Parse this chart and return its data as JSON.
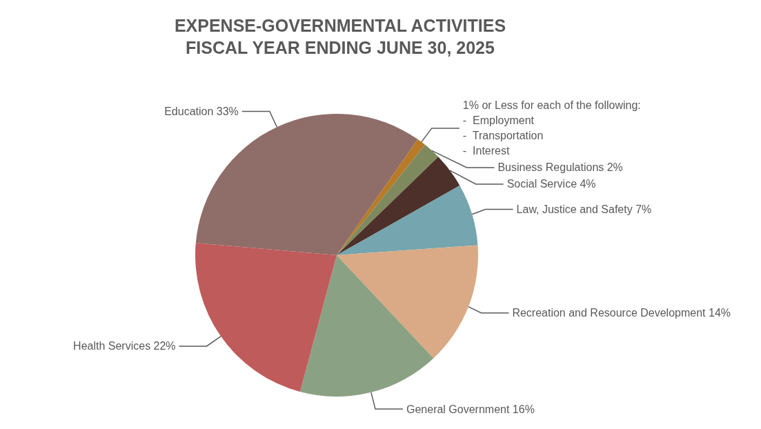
{
  "chart_data": {
    "type": "pie",
    "title": "EXPENSE-GOVERNMENTAL ACTIVITIES\nFISCAL YEAR ENDING JUNE 30, 2025",
    "categories": [
      "Education",
      "1% or Less for each of the following:\n-  Employment\n-  Transportation\n-  Interest",
      "Business Regulations",
      "Social Service",
      "Law, Justice and Safety",
      "Recreation and Resource Development",
      "General Government",
      "Health Services"
    ],
    "values": [
      33,
      1,
      2,
      4,
      7,
      14,
      16,
      22
    ],
    "value_labels": [
      "33%",
      null,
      "2%",
      "4%",
      "7%",
      "14%",
      "16%",
      "22%"
    ],
    "colors": [
      "#8f6d68",
      "#b87a26",
      "#7e8a5e",
      "#4d302a",
      "#75a5ae",
      "#d9aa85",
      "#8aa283",
      "#bf5b5a"
    ]
  }
}
